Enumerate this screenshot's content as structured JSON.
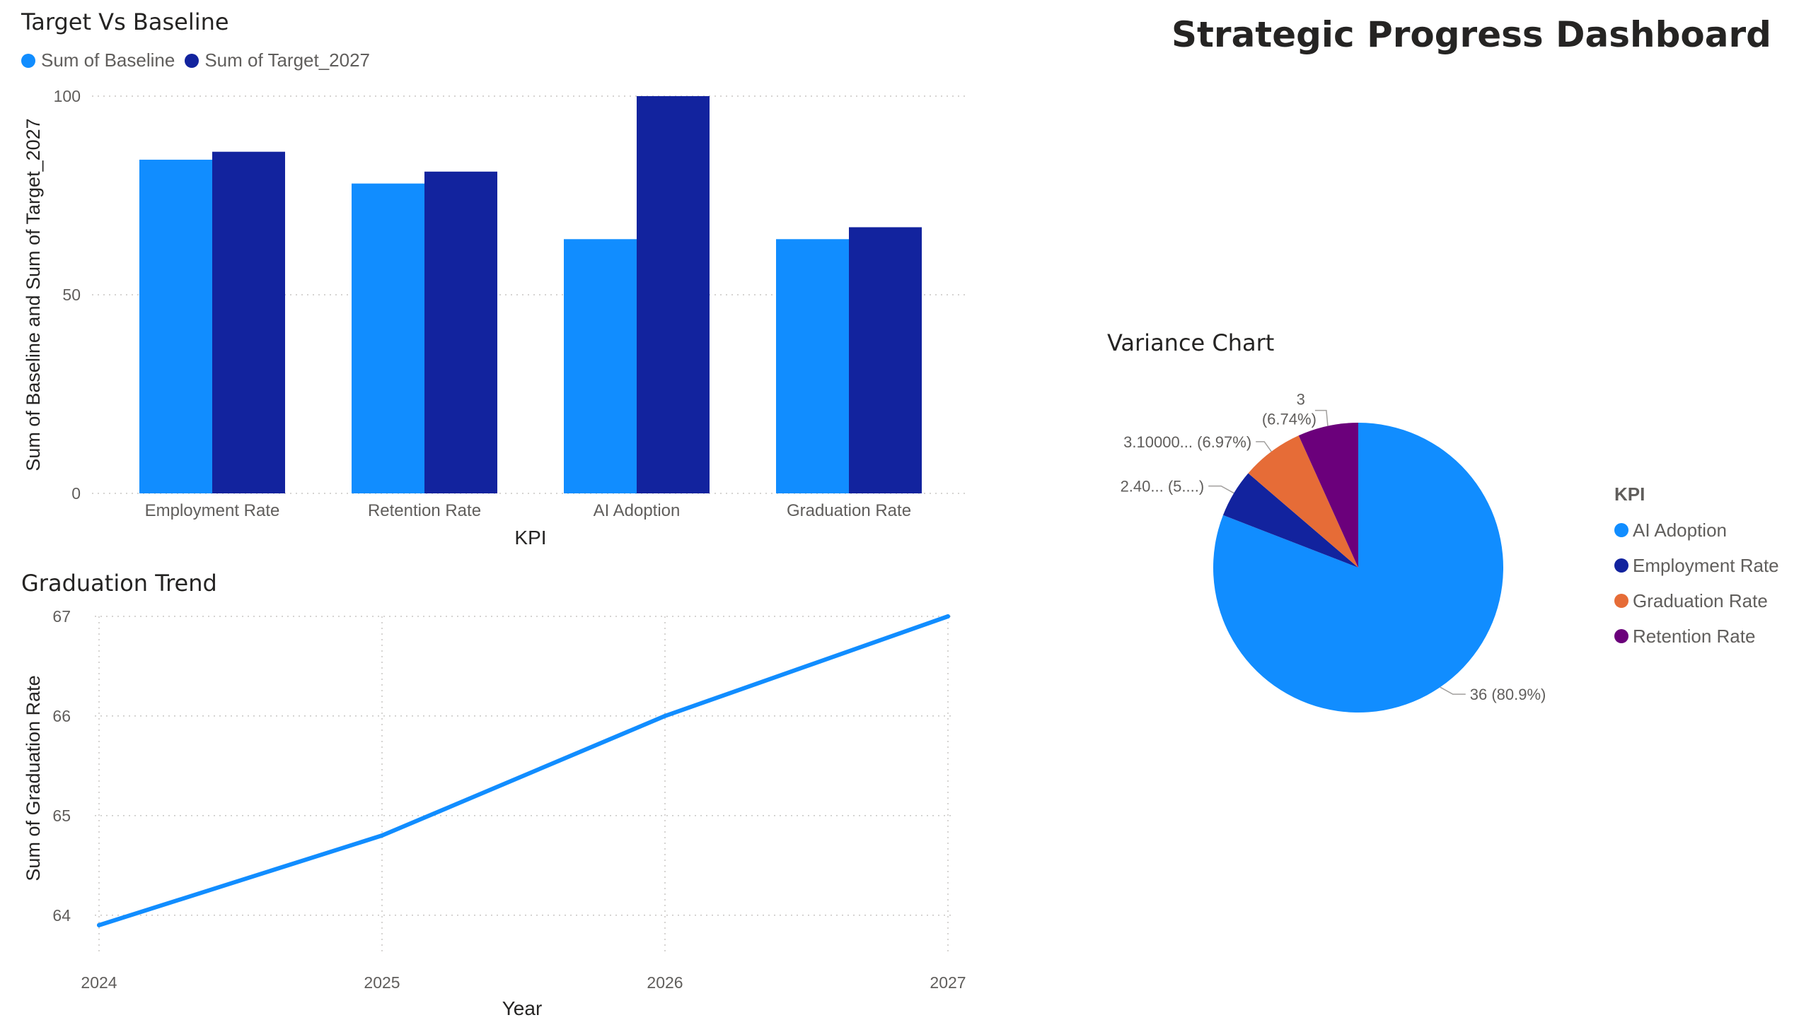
{
  "dashboard": {
    "title": "Strategic Progress Dashboard"
  },
  "colors": {
    "baseline": "#118DFF",
    "target": "#12239E",
    "ai": "#118DFF",
    "employment": "#12239E",
    "graduation": "#E66C37",
    "retention": "#6B007B",
    "line": "#118DFF",
    "grid": "#C8C6C4"
  },
  "chart_data": [
    {
      "id": "bar",
      "type": "bar",
      "title": "Target Vs Baseline",
      "xlabel": "KPI",
      "ylabel": "Sum of Baseline and Sum of Target_2027",
      "categories": [
        "Employment Rate",
        "Retention Rate",
        "AI Adoption",
        "Graduation Rate"
      ],
      "series": [
        {
          "name": "Sum of Baseline",
          "values": [
            84,
            78,
            64,
            64
          ]
        },
        {
          "name": "Sum of Target_2027",
          "values": [
            86,
            81,
            100,
            67
          ]
        }
      ],
      "ylim": [
        0,
        100
      ],
      "yticks": [
        "0",
        "50",
        "100"
      ],
      "legend": "top-left",
      "grid": true
    },
    {
      "id": "line",
      "type": "line",
      "title": "Graduation Trend",
      "xlabel": "Year",
      "ylabel": "Sum of Graduation Rate",
      "x": [
        "2024",
        "2025",
        "2026",
        "2027"
      ],
      "values": [
        63.9,
        64.8,
        66,
        67
      ],
      "ylim": [
        63.75,
        67
      ],
      "yticks": [
        "64",
        "65",
        "66",
        "67"
      ],
      "grid": true
    },
    {
      "id": "pie",
      "type": "pie",
      "title": "Variance Chart",
      "legend_title": "KPI",
      "legend": "right",
      "slices": [
        {
          "label": "AI Adoption",
          "value": 36,
          "pct": 80.9,
          "data_label": "36 (80.9%)"
        },
        {
          "label": "Employment Rate",
          "value": 2.4,
          "pct": 5.39,
          "data_label": "2.40... (5....)"
        },
        {
          "label": "Graduation Rate",
          "value": 3.1,
          "pct": 6.97,
          "data_label": "3.10000... (6.97%)"
        },
        {
          "label": "Retention Rate",
          "value": 3,
          "pct": 6.74,
          "data_label": "3 (6.74%)",
          "data_label_lines": [
            "3",
            "(6.74%)"
          ]
        }
      ]
    }
  ]
}
